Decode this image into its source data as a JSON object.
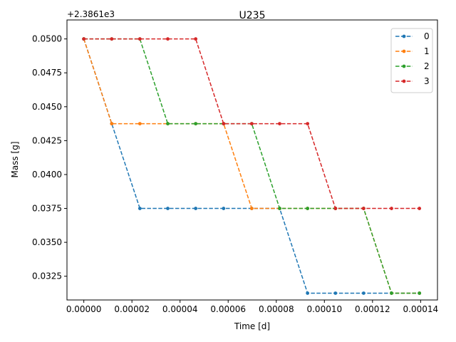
{
  "chart_data": {
    "type": "line",
    "title": "U235",
    "xlabel": "Time [d]",
    "ylabel": "Mass [g]",
    "y_offset_label": "+2.3861e3",
    "xlim": [
      -7e-06,
      0.000147
    ],
    "ylim": [
      0.03075,
      0.0514
    ],
    "x_ticks": [
      0,
      2e-05,
      4e-05,
      6e-05,
      8e-05,
      0.0001,
      0.00012,
      0.00014
    ],
    "x_tick_labels": [
      "0.00000",
      "0.00002",
      "0.00004",
      "0.00006",
      "0.00008",
      "0.00010",
      "0.00012",
      "0.00014"
    ],
    "y_ticks": [
      0.0325,
      0.035,
      0.0375,
      0.04,
      0.0425,
      0.045,
      0.0475,
      0.05
    ],
    "y_tick_labels": [
      "0.0325",
      "0.0350",
      "0.0375",
      "0.0400",
      "0.0425",
      "0.0450",
      "0.0475",
      "0.0500"
    ],
    "x": [
      0,
      1.16e-05,
      2.33e-05,
      3.49e-05,
      4.65e-05,
      5.81e-05,
      6.98e-05,
      8.14e-05,
      9.3e-05,
      0.0001046,
      0.0001163,
      0.0001279,
      0.0001395
    ],
    "legend_position": "top-right",
    "grid": false,
    "series": [
      {
        "name": "0",
        "color": "#1f77b4",
        "values": [
          0.05,
          0.04375,
          0.0375,
          0.0375,
          0.0375,
          0.0375,
          0.0375,
          0.0375,
          0.03125,
          0.03125,
          0.03125,
          0.03125,
          0.03125
        ]
      },
      {
        "name": "1",
        "color": "#ff7f0e",
        "values": [
          0.05,
          0.04375,
          0.04375,
          0.04375,
          0.04375,
          0.04375,
          0.0375,
          0.0375,
          0.0375,
          0.0375,
          0.0375,
          0.03125,
          0.03125
        ]
      },
      {
        "name": "2",
        "color": "#2ca02c",
        "values": [
          0.05,
          0.05,
          0.05,
          0.04375,
          0.04375,
          0.04375,
          0.04375,
          0.0375,
          0.0375,
          0.0375,
          0.0375,
          0.03125,
          0.03125
        ]
      },
      {
        "name": "3",
        "color": "#d62728",
        "values": [
          0.05,
          0.05,
          0.05,
          0.05,
          0.05,
          0.04375,
          0.04375,
          0.04375,
          0.04375,
          0.0375,
          0.0375,
          0.0375,
          0.0375
        ]
      }
    ]
  }
}
